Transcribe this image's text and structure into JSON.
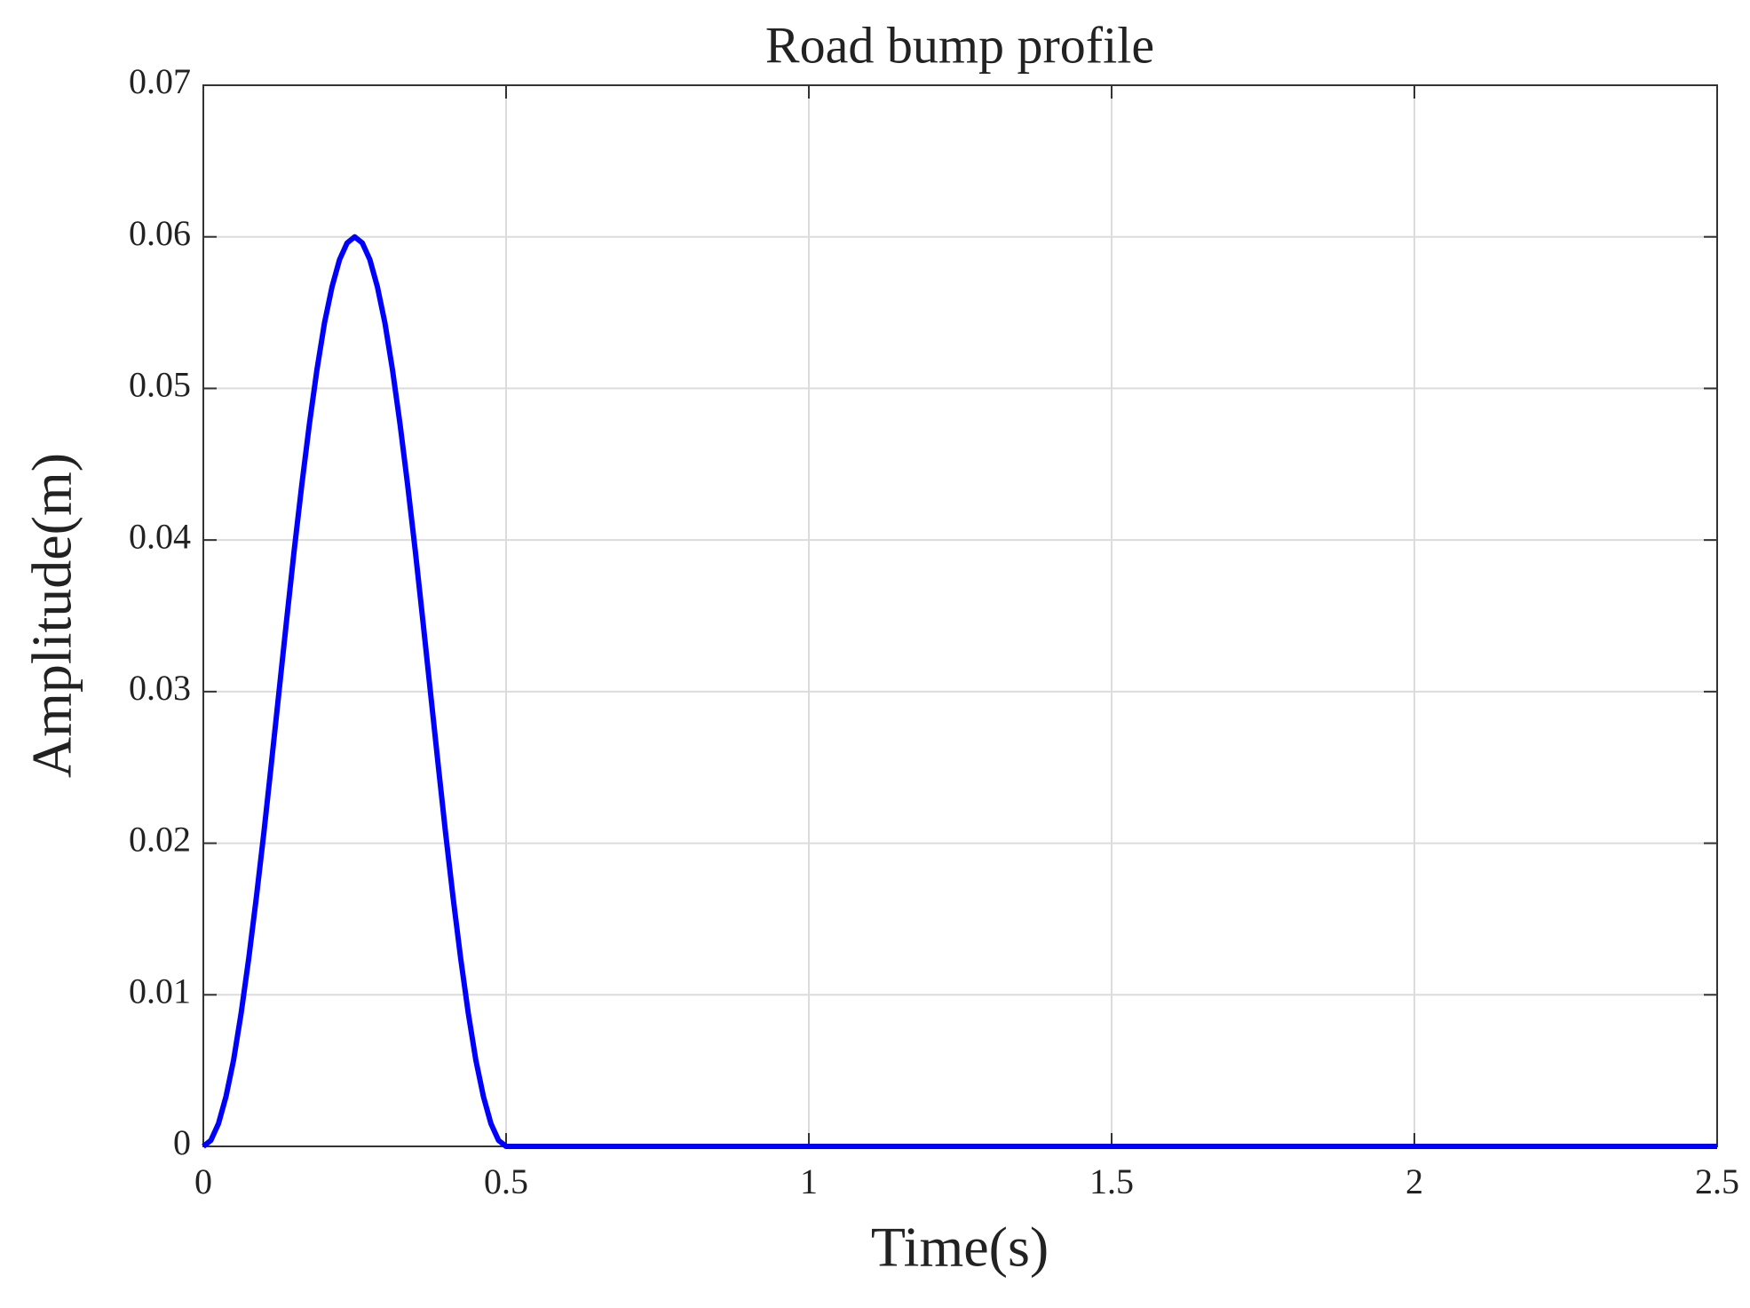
{
  "chart_data": {
    "type": "line",
    "title": "Road bump profile",
    "x_label": "Time(s)",
    "y_label": "Amplitude(m)",
    "x": [
      0,
      0.0125,
      0.025,
      0.0375,
      0.05,
      0.0625,
      0.075,
      0.0875,
      0.1,
      0.1125,
      0.125,
      0.1375,
      0.15,
      0.1625,
      0.175,
      0.1875,
      0.2,
      0.2125,
      0.225,
      0.2375,
      0.25,
      0.2625,
      0.275,
      0.2875,
      0.3,
      0.3125,
      0.325,
      0.3375,
      0.35,
      0.3625,
      0.375,
      0.3875,
      0.4,
      0.4125,
      0.425,
      0.4375,
      0.45,
      0.4625,
      0.475,
      0.4875,
      0.5,
      2.5
    ],
    "series": [
      {
        "name": "Road bump",
        "color": "#0000ff",
        "values": [
          0,
          0.0004,
          0.0015,
          0.0033,
          0.0057,
          0.0088,
          0.0124,
          0.0164,
          0.0207,
          0.0253,
          0.03,
          0.0347,
          0.0393,
          0.0436,
          0.0476,
          0.0512,
          0.0543,
          0.0567,
          0.0585,
          0.0596,
          0.06,
          0.0596,
          0.0585,
          0.0567,
          0.0543,
          0.0512,
          0.0476,
          0.0436,
          0.0393,
          0.0347,
          0.03,
          0.0253,
          0.0207,
          0.0164,
          0.0124,
          0.0088,
          0.0057,
          0.0033,
          0.0015,
          0.0004,
          0,
          0
        ]
      }
    ],
    "xlim": [
      0,
      2.5
    ],
    "xticks": [
      0,
      0.5,
      1,
      1.5,
      2,
      2.5
    ],
    "ylim": [
      0,
      0.07
    ],
    "yticks": [
      0,
      0.01,
      0.02,
      0.03,
      0.04,
      0.05,
      0.06,
      0.07
    ],
    "grid": true
  }
}
